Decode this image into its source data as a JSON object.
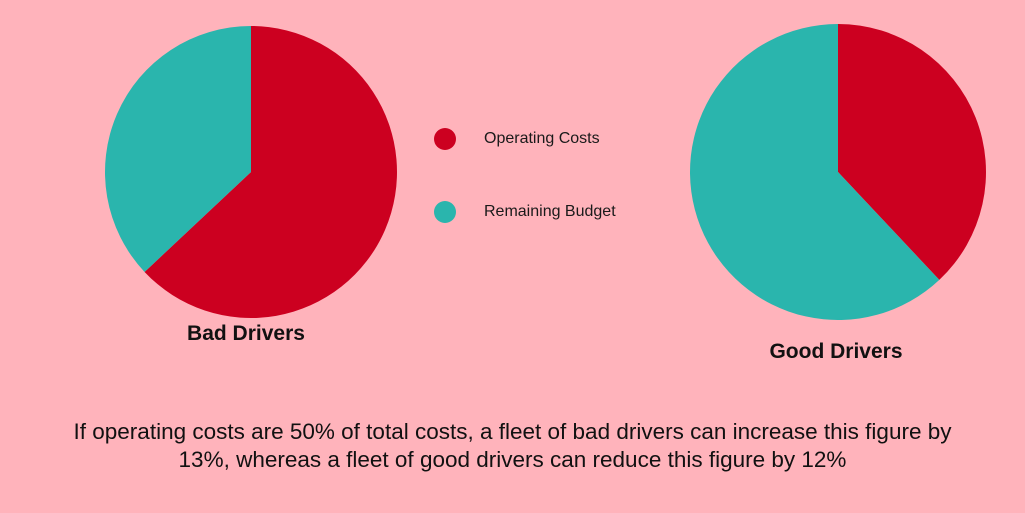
{
  "colors": {
    "background": "#ffb3bb",
    "operating_costs": "#cc0020",
    "remaining_budget": "#2ab5ad"
  },
  "legend": {
    "items": [
      {
        "label": "Operating Costs",
        "color": "#cc0020"
      },
      {
        "label": "Remaining Budget",
        "color": "#2ab5ad"
      }
    ]
  },
  "chart_data": [
    {
      "type": "pie",
      "title": "Bad Drivers",
      "slices": [
        {
          "label": "Operating Costs",
          "value": 63,
          "color": "#cc0020"
        },
        {
          "label": "Remaining Budget",
          "value": 37,
          "color": "#2ab5ad"
        }
      ]
    },
    {
      "type": "pie",
      "title": "Good Drivers",
      "slices": [
        {
          "label": "Operating Costs",
          "value": 38,
          "color": "#cc0020"
        },
        {
          "label": "Remaining Budget",
          "value": 62,
          "color": "#2ab5ad"
        }
      ]
    }
  ],
  "caption": {
    "line1": "If operating costs are 50% of total costs, a fleet of bad drivers can increase this figure by",
    "line2": "13%, whereas a fleet of good drivers can reduce this figure by 12%"
  }
}
